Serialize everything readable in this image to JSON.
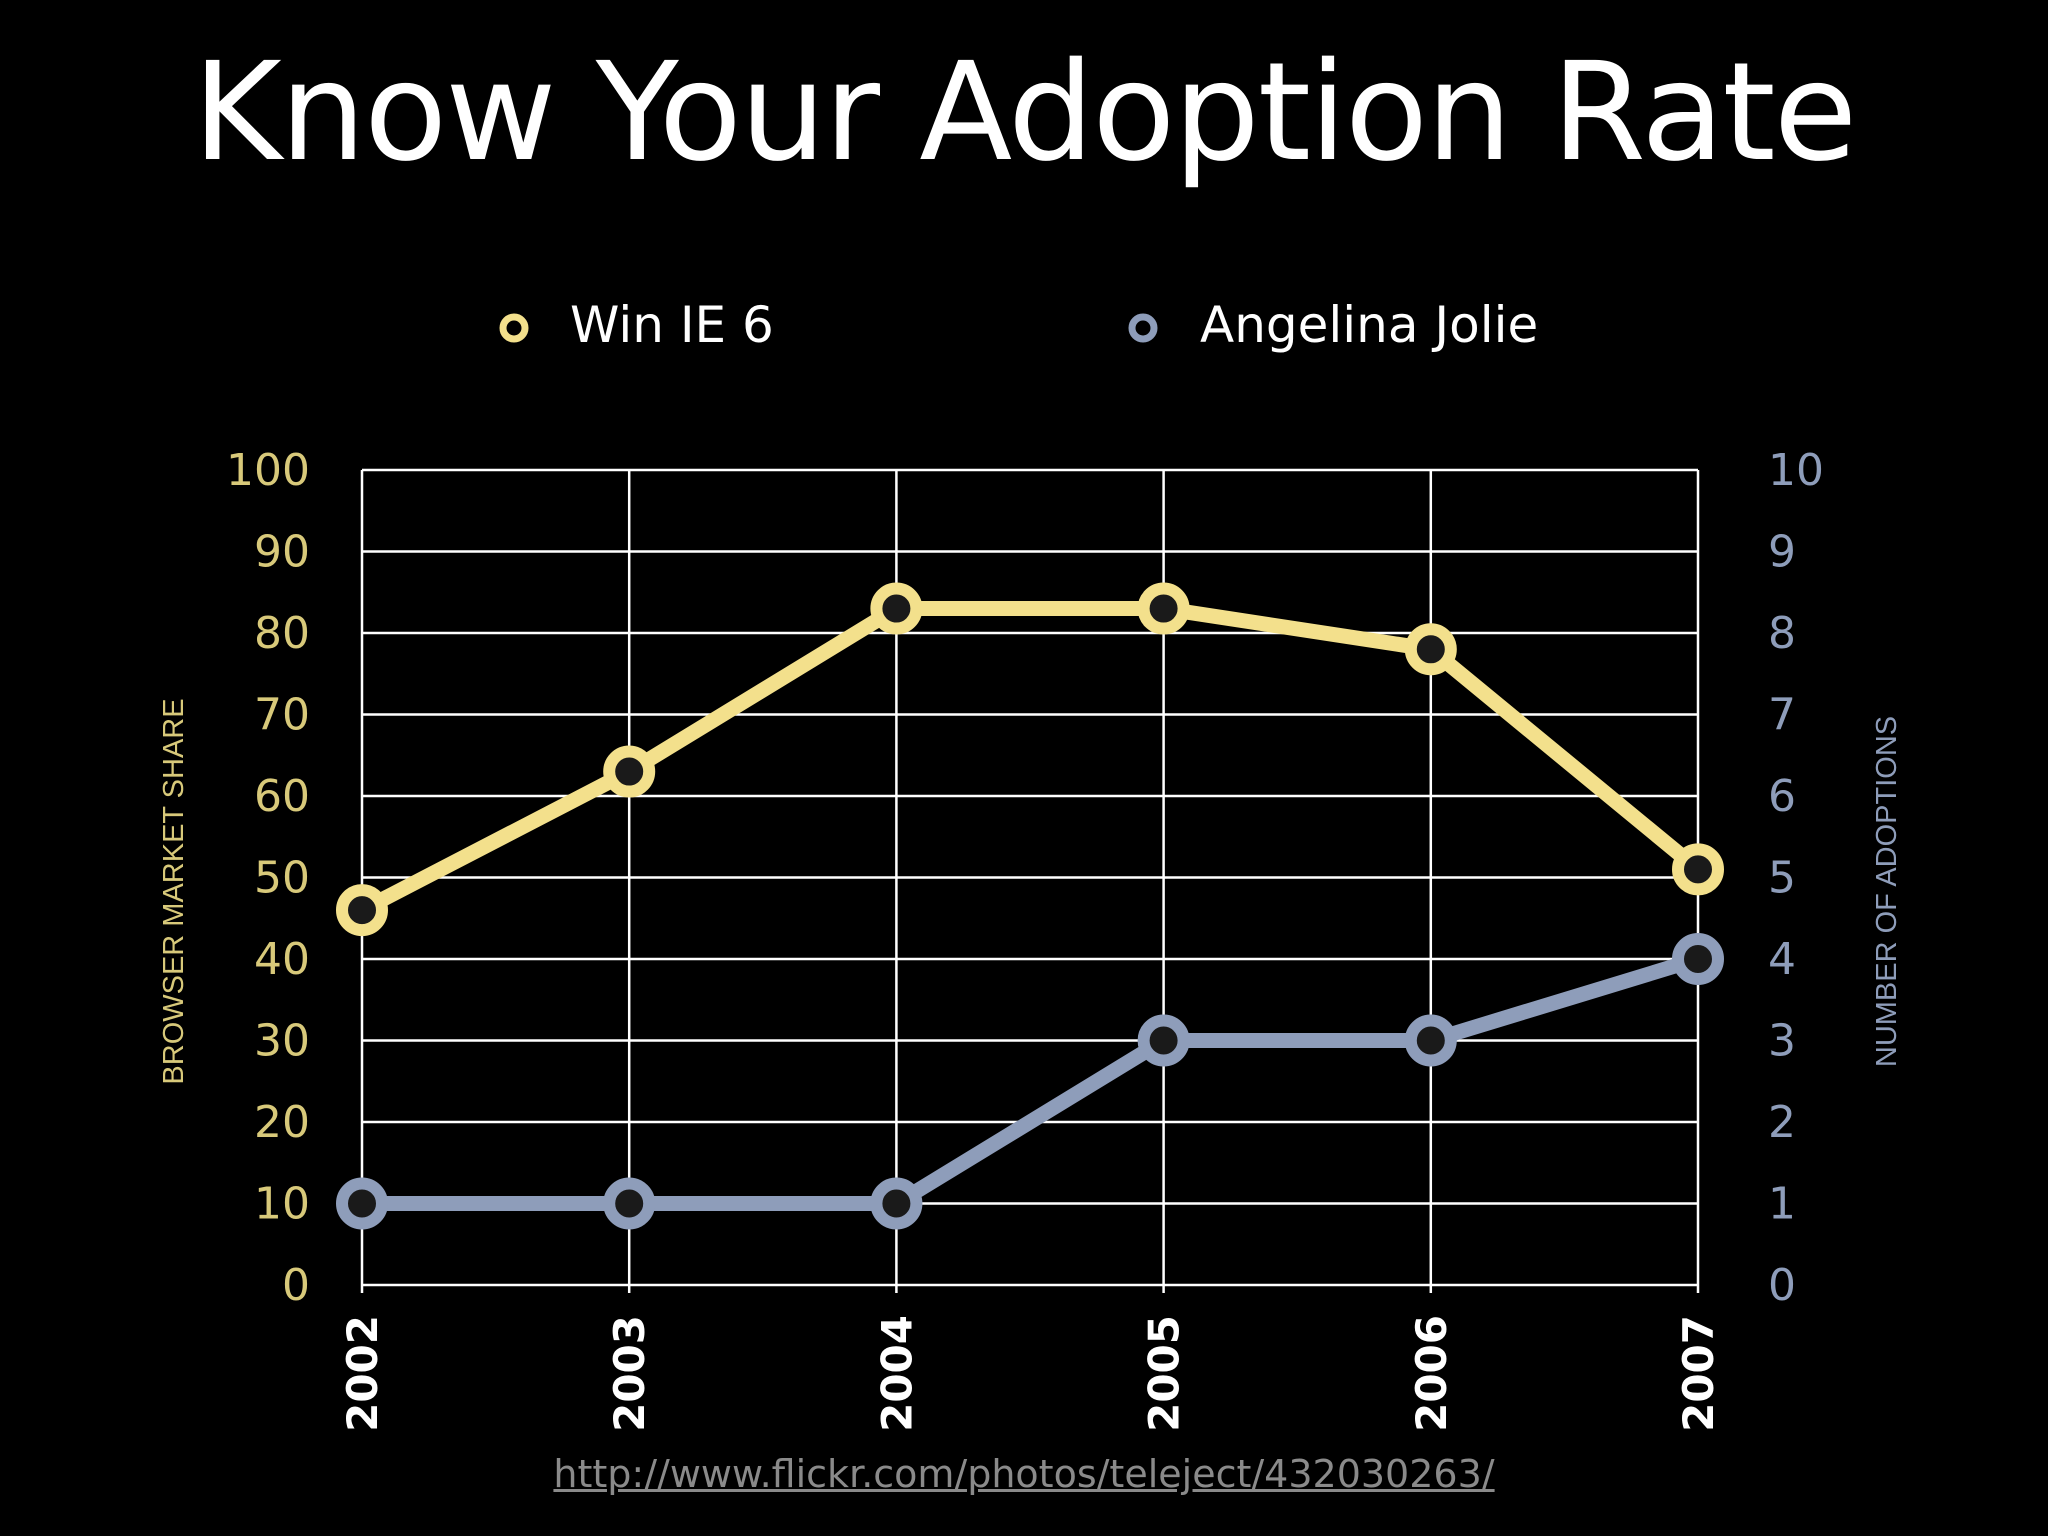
{
  "slide": {
    "title": "Know Your Adoption Rate",
    "source_url": "http://www.flickr.com/photos/teleject/432030263/"
  },
  "colors": {
    "background": "#000000",
    "grid": "#ffffff",
    "win_ie6": "#f3e08c",
    "angelina_jolie": "#8e9dba",
    "left_axis_text": "#d8c97a",
    "right_axis_text": "#8e9dba",
    "x_axis_text": "#ffffff"
  },
  "chart_data": {
    "type": "line",
    "categories": [
      "2002",
      "2003",
      "2004",
      "2005",
      "2006",
      "2007"
    ],
    "legend_position": "top-center",
    "grid": true,
    "y_left": {
      "label": "BROWSER MARKET SHARE",
      "range": [
        0,
        100
      ],
      "ticks": [
        "0",
        "10",
        "20",
        "30",
        "40",
        "50",
        "60",
        "70",
        "80",
        "90",
        "100"
      ]
    },
    "y_right": {
      "label": "NUMBER OF ADOPTIONS",
      "range": [
        0,
        10
      ],
      "ticks": [
        "0",
        "1",
        "2",
        "3",
        "4",
        "5",
        "6",
        "7",
        "8",
        "9",
        "10"
      ]
    },
    "series": [
      {
        "name": "Win IE 6",
        "axis": "left",
        "color": "#f3e08c",
        "values": [
          46,
          63,
          83,
          83,
          78,
          51
        ]
      },
      {
        "name": "Angelina Jolie",
        "axis": "right",
        "color": "#8e9dba",
        "values": [
          1,
          1,
          1,
          3,
          3,
          4
        ]
      }
    ]
  }
}
